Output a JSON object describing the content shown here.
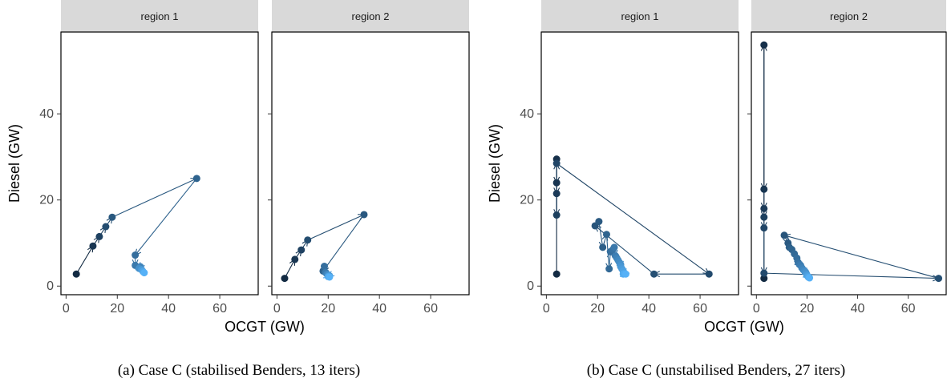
{
  "figure": {
    "captions": [
      "(a) Case C (stabilised Benders, 13 iters)",
      "(b) Case C (unstabilised Benders, 27 iters)"
    ]
  },
  "chart_data": [
    {
      "type": "scatter",
      "subtitle": "(a) Case C (stabilised Benders, 13 iters)",
      "xlabel": "OCGT (GW)",
      "ylabel": "Diesel (GW)",
      "xlim": [
        -2,
        75
      ],
      "ylim": [
        -2,
        59
      ],
      "xticks": [
        0,
        20,
        40,
        60
      ],
      "yticks": [
        0,
        20,
        40
      ],
      "grid": false,
      "color_scale": [
        "#132b43",
        "#56b1f7"
      ],
      "panels": [
        {
          "name": "region 1",
          "points": [
            [
              4,
              2.8
            ],
            [
              10.5,
              9.3
            ],
            [
              13,
              11.5
            ],
            [
              15.5,
              13.8
            ],
            [
              18,
              16
            ],
            [
              51,
              25
            ],
            [
              27,
              7.2
            ],
            [
              27,
              4.8
            ],
            [
              29,
              4.5
            ],
            [
              28.5,
              4.1
            ],
            [
              29.5,
              3.8
            ],
            [
              30,
              3.4
            ],
            [
              30.5,
              3.1
            ]
          ]
        },
        {
          "name": "region 2",
          "points": [
            [
              3,
              1.8
            ],
            [
              7,
              6.2
            ],
            [
              9.5,
              8.4
            ],
            [
              12,
              10.7
            ],
            [
              34,
              16.6
            ],
            [
              18,
              3.5
            ],
            [
              18.5,
              4.6
            ],
            [
              19,
              3.2
            ],
            [
              19.5,
              2.8
            ],
            [
              20,
              2.6
            ],
            [
              20.5,
              2.4
            ],
            [
              20,
              2.2
            ],
            [
              20.5,
              2.1
            ]
          ]
        }
      ]
    },
    {
      "type": "scatter",
      "subtitle": "(b) Case C (unstabilised Benders, 27 iters)",
      "xlabel": "OCGT (GW)",
      "ylabel": "Diesel (GW)",
      "xlim": [
        -2,
        75
      ],
      "ylim": [
        -2,
        59
      ],
      "xticks": [
        0,
        20,
        40,
        60
      ],
      "yticks": [
        0,
        20,
        40
      ],
      "grid": false,
      "color_scale": [
        "#132b43",
        "#56b1f7"
      ],
      "panels": [
        {
          "name": "region 1",
          "points": [
            [
              4,
              2.8
            ],
            [
              4,
              29.5
            ],
            [
              4,
              24
            ],
            [
              4,
              21.5
            ],
            [
              4,
              16.5
            ],
            [
              4,
              28.5
            ],
            [
              63.5,
              2.8
            ],
            [
              42,
              2.8
            ],
            [
              19,
              14
            ],
            [
              20.5,
              15
            ],
            [
              22,
              9
            ],
            [
              23.5,
              12
            ],
            [
              24.5,
              4
            ],
            [
              25,
              8
            ],
            [
              26,
              8.5
            ],
            [
              26.5,
              9
            ],
            [
              27,
              7
            ],
            [
              27.5,
              6.5
            ],
            [
              28,
              6
            ],
            [
              28.5,
              5.5
            ],
            [
              29,
              5
            ],
            [
              29,
              4.5
            ],
            [
              29.5,
              4
            ],
            [
              30,
              3.5
            ],
            [
              30.5,
              3
            ],
            [
              30,
              2.8
            ],
            [
              31,
              2.8
            ]
          ]
        },
        {
          "name": "region 2",
          "points": [
            [
              3,
              1.8
            ],
            [
              3,
              56
            ],
            [
              3,
              22.5
            ],
            [
              3,
              18
            ],
            [
              3,
              16
            ],
            [
              3,
              13.5
            ],
            [
              3,
              3
            ],
            [
              72,
              1.8
            ],
            [
              11,
              11.8
            ],
            [
              12.5,
              10
            ],
            [
              13,
              9
            ],
            [
              14,
              8.5
            ],
            [
              15,
              7.5
            ],
            [
              16,
              6.5
            ],
            [
              16.5,
              5.5
            ],
            [
              17,
              5
            ],
            [
              17.5,
              4.8
            ],
            [
              18,
              4.2
            ],
            [
              18.5,
              3.8
            ],
            [
              19,
              3.5
            ],
            [
              19.5,
              3.2
            ],
            [
              19.8,
              2.8
            ],
            [
              20,
              2.5
            ],
            [
              20.3,
              2.3
            ],
            [
              20.5,
              2.1
            ],
            [
              20.8,
              2
            ],
            [
              21,
              1.9
            ]
          ]
        }
      ]
    }
  ]
}
